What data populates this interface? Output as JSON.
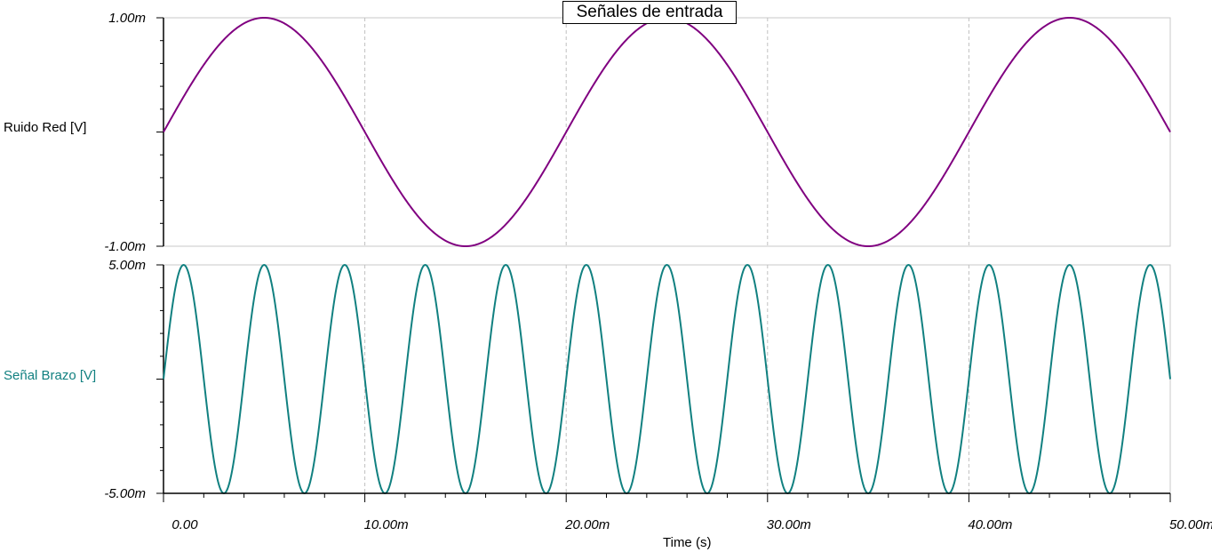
{
  "chart_data": [
    {
      "type": "line",
      "title": "Señales de entrada",
      "ylabel": "Ruido Red [V]",
      "yticks": [
        "1.00m",
        "-1.00m"
      ],
      "ylim": [
        -0.001,
        0.001
      ],
      "xlim": [
        0,
        0.05
      ],
      "series": [
        {
          "color": "#800080",
          "waveform": "sine",
          "amplitude": 0.001,
          "frequency_hz": 50,
          "phase_deg": 0,
          "x": [
            0,
            0.005,
            0.01,
            0.015,
            0.02,
            0.025,
            0.03,
            0.035,
            0.04,
            0.045,
            0.05
          ],
          "y": [
            0,
            0.001,
            0,
            -0.001,
            0,
            0.001,
            0,
            -0.001,
            0,
            0.001,
            0
          ]
        }
      ]
    },
    {
      "type": "line",
      "ylabel": "Señal Brazo [V]",
      "yticks": [
        "5.00m",
        "-5.00m"
      ],
      "ylim": [
        -0.005,
        0.005
      ],
      "xlim": [
        0,
        0.05
      ],
      "xlabel": "Time (s)",
      "xticks": [
        "0.00",
        "10.00m",
        "20.00m",
        "30.00m",
        "40.00m",
        "50.00m"
      ],
      "series": [
        {
          "color": "#118080",
          "waveform": "sine",
          "amplitude": 0.005,
          "frequency_hz": 250,
          "phase_deg": 0,
          "x": [
            0,
            0.001,
            0.002,
            0.003,
            0.004
          ],
          "y": [
            0,
            0.005,
            0,
            -0.005,
            0
          ]
        }
      ]
    }
  ]
}
